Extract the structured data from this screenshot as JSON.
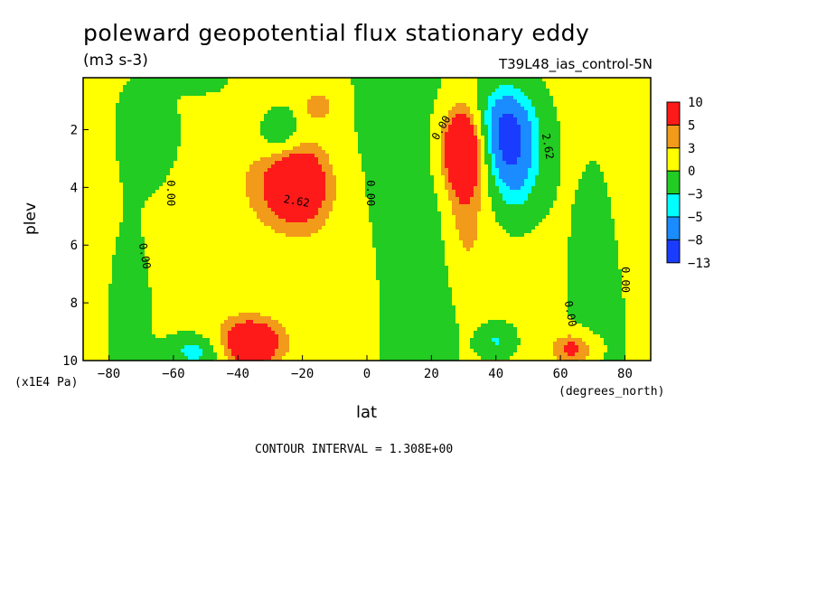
{
  "title": "poleward geopotential flux stationary eddy",
  "units": "(m3 s-3)",
  "run_label": "T39L48_ias_control-5N",
  "contour_interval_text": "CONTOUR INTERVAL = 1.308E+00",
  "chart_data": {
    "type": "heatmap",
    "xlabel": "lat",
    "x_units": "(degrees_north)",
    "ylabel": "plev",
    "y_multiplier": "(x1E4 Pa)",
    "xlim": [
      -88,
      88
    ],
    "ylim": [
      10,
      0.2
    ],
    "x_ticks": [
      -80,
      -60,
      -40,
      -20,
      0,
      20,
      40,
      60,
      80
    ],
    "y_ticks": [
      2,
      4,
      6,
      8,
      10
    ],
    "legend_levels": [
      "10",
      "5",
      "3",
      "0",
      "-3",
      "-5",
      "-8",
      "-13"
    ],
    "legend_colors": [
      "#ff1a1a",
      "#f29a1a",
      "#ffff00",
      "#22cc22",
      "#00ffff",
      "#1a8cff",
      "#1a3cff"
    ],
    "contour_labels": [
      {
        "text": "0.00",
        "lat": -62,
        "plev": 4.2,
        "rotate": 90
      },
      {
        "text": "0.00",
        "lat": 0,
        "plev": 4.2,
        "rotate": 90
      },
      {
        "text": "0.00",
        "lat": -70,
        "plev": 6.4,
        "rotate": 80
      },
      {
        "text": "2.62",
        "lat": -22,
        "plev": 4.6,
        "rotate": 10
      },
      {
        "text": "0.00",
        "lat": 24,
        "plev": 2.0,
        "rotate": -60
      },
      {
        "text": "2.62",
        "lat": 55,
        "plev": 2.6,
        "rotate": 80
      },
      {
        "text": "0.00",
        "lat": 79,
        "plev": 7.2,
        "rotate": 90
      },
      {
        "text": "0.00",
        "lat": 62,
        "plev": 8.4,
        "rotate": 80
      }
    ],
    "features": [
      {
        "lat": -22,
        "plev": 3.9,
        "value": 9.5,
        "sx": 7,
        "sy": 1.0
      },
      {
        "lat": 30,
        "plev": 2.6,
        "value": 9.8,
        "sx": 5,
        "sy": 1.0
      },
      {
        "lat": 30,
        "plev": 4.6,
        "value": 4.0,
        "sx": 5,
        "sy": 2.0
      },
      {
        "lat": 43,
        "plev": 2.0,
        "value": -10.0,
        "sx": 7,
        "sy": 1.1
      },
      {
        "lat": 46,
        "plev": 3.8,
        "value": -4.5,
        "sx": 6,
        "sy": 1.0
      },
      {
        "lat": -27,
        "plev": 2.1,
        "value": -4.5,
        "sx": 5,
        "sy": 0.6
      },
      {
        "lat": -36,
        "plev": 9.4,
        "value": 8.5,
        "sx": 7,
        "sy": 0.6
      },
      {
        "lat": -53,
        "plev": 9.7,
        "value": -5.0,
        "sx": 6,
        "sy": 0.4
      },
      {
        "lat": -50,
        "plev": 0.3,
        "value": -4.0,
        "sx": 5,
        "sy": 0.3
      },
      {
        "lat": 64,
        "plev": 9.6,
        "value": 6.0,
        "sx": 5,
        "sy": 0.4
      },
      {
        "lat": 40,
        "plev": 9.3,
        "value": -4.0,
        "sx": 4,
        "sy": 0.4
      },
      {
        "lat": -15,
        "plev": 1.2,
        "value": 3.5,
        "sx": 4,
        "sy": 0.4
      },
      {
        "lat": 5,
        "plev": 5.0,
        "value": -2.0,
        "sx": 10,
        "sy": 6.0
      },
      {
        "lat": 22,
        "plev": 6.5,
        "value": -2.0,
        "sx": 6,
        "sy": 5.0
      },
      {
        "lat": -68,
        "plev": 2.0,
        "value": -2.0,
        "sx": 8,
        "sy": 1.5
      },
      {
        "lat": -75,
        "plev": 8.5,
        "value": -2.0,
        "sx": 6,
        "sy": 2.5
      },
      {
        "lat": 72,
        "plev": 8.0,
        "value": -1.8,
        "sx": 8,
        "sy": 4.0
      },
      {
        "lat": -40,
        "plev": 3.5,
        "value": 1.5,
        "sx": 8,
        "sy": 3.0
      },
      {
        "lat": -5,
        "plev": 7.0,
        "value": 1.5,
        "sx": 10,
        "sy": 3.0
      },
      {
        "lat": 84,
        "plev": 3.5,
        "value": 1.5,
        "sx": 5,
        "sy": 3.0
      },
      {
        "lat": -85,
        "plev": 6.0,
        "value": 1.5,
        "sx": 4,
        "sy": 3.0
      }
    ]
  }
}
